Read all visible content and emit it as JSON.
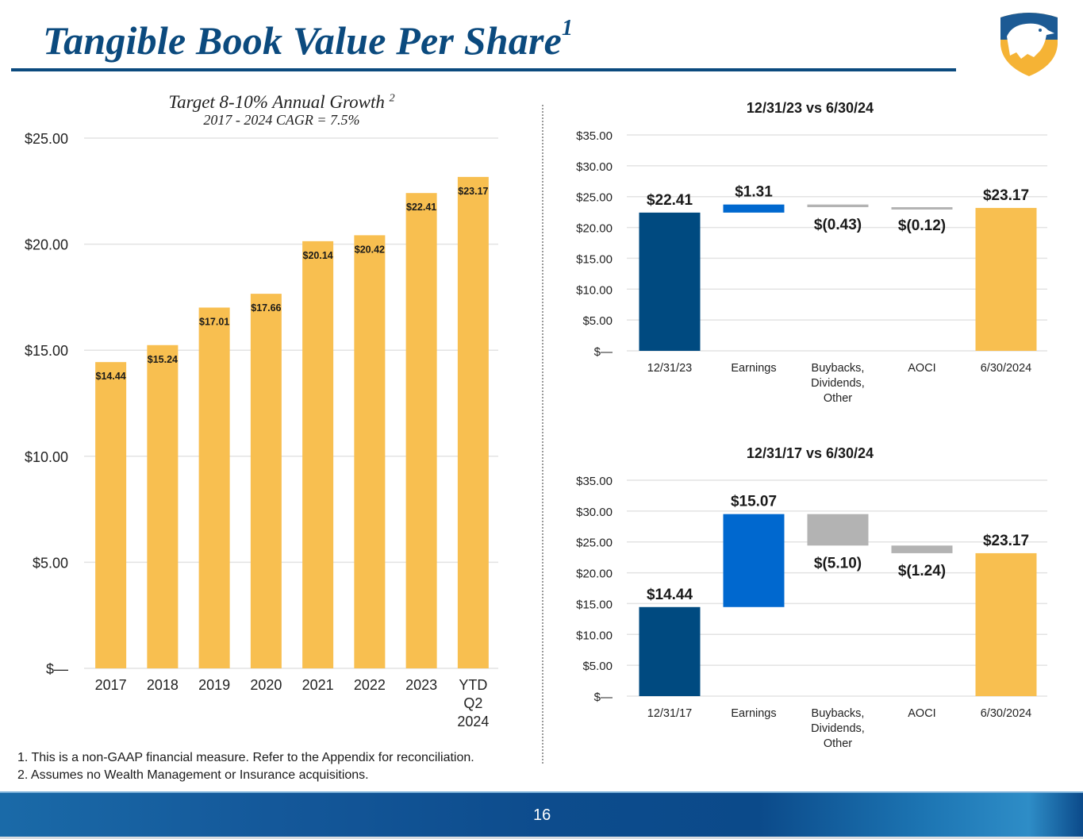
{
  "slide": {
    "title": "Tangible Book Value Per Share",
    "title_footnote_marker": "1",
    "page_number": "16",
    "logo": "eagle-shield-logo",
    "footnotes": [
      "1. This is a non-GAAP financial measure. Refer to the Appendix for reconciliation.",
      "2. Assumes no Wealth Management or Insurance acquisitions."
    ],
    "colors": {
      "title": "#0b4a7e",
      "bar_gold": "#f8bf50",
      "bar_navy": "#004a80",
      "bar_blue": "#0068cf",
      "bar_gray": "#b3b3b3"
    }
  },
  "chart_data": [
    {
      "type": "bar",
      "title": "Target 8-10% Annual Growth",
      "title_footnote_marker": "2",
      "subtitle": "2017 - 2024 CAGR = 7.5%",
      "categories": [
        "2017",
        "2018",
        "2019",
        "2020",
        "2021",
        "2022",
        "2023",
        "YTD Q2 2024"
      ],
      "category_lines": [
        [
          "2017"
        ],
        [
          "2018"
        ],
        [
          "2019"
        ],
        [
          "2020"
        ],
        [
          "2021"
        ],
        [
          "2022"
        ],
        [
          "2023"
        ],
        [
          "YTD",
          "Q2",
          "2024"
        ]
      ],
      "values": [
        14.44,
        15.24,
        17.01,
        17.66,
        20.14,
        20.42,
        22.41,
        23.17
      ],
      "data_labels": [
        "$14.44",
        "$15.24",
        "$17.01",
        "$17.66",
        "$20.14",
        "$20.42",
        "$22.41",
        "$23.17"
      ],
      "ylim": [
        0,
        25
      ],
      "yticks": [
        0,
        5,
        10,
        15,
        20,
        25
      ],
      "ytick_labels": [
        "$—",
        "$5.00",
        "$10.00",
        "$15.00",
        "$20.00",
        "$25.00"
      ],
      "xlabel": "",
      "ylabel": "",
      "grid": true,
      "legend": "none"
    },
    {
      "type": "bar",
      "subtype": "waterfall",
      "title": "12/31/23 vs 6/30/24",
      "categories": [
        "12/31/23",
        "Earnings",
        "Buybacks, Dividends, Other",
        "AOCI",
        "6/30/2024"
      ],
      "category_lines": [
        [
          "12/31/23"
        ],
        [
          "Earnings"
        ],
        [
          "Buybacks,",
          "Dividends,",
          "Other"
        ],
        [
          "AOCI"
        ],
        [
          "6/30/2024"
        ]
      ],
      "values": [
        22.41,
        1.31,
        -0.43,
        -0.12,
        23.17
      ],
      "kinds": [
        "total",
        "delta",
        "delta",
        "delta",
        "total"
      ],
      "data_labels": [
        "$22.41",
        "$1.31",
        "$(0.43)",
        "$(0.12)",
        "$23.17"
      ],
      "ylim": [
        0,
        35
      ],
      "yticks": [
        0,
        5,
        10,
        15,
        20,
        25,
        30,
        35
      ],
      "ytick_labels": [
        "$—",
        "$5.00",
        "$10.00",
        "$15.00",
        "$20.00",
        "$25.00",
        "$30.00",
        "$35.00"
      ],
      "grid": true,
      "legend": "none"
    },
    {
      "type": "bar",
      "subtype": "waterfall",
      "title": "12/31/17 vs 6/30/24",
      "categories": [
        "12/31/17",
        "Earnings",
        "Buybacks, Dividends, Other",
        "AOCI",
        "6/30/2024"
      ],
      "category_lines": [
        [
          "12/31/17"
        ],
        [
          "Earnings"
        ],
        [
          "Buybacks,",
          "Dividends,",
          "Other"
        ],
        [
          "AOCI"
        ],
        [
          "6/30/2024"
        ]
      ],
      "values": [
        14.44,
        15.07,
        -5.1,
        -1.24,
        23.17
      ],
      "kinds": [
        "total",
        "delta",
        "delta",
        "delta",
        "total"
      ],
      "data_labels": [
        "$14.44",
        "$15.07",
        "$(5.10)",
        "$(1.24)",
        "$23.17"
      ],
      "ylim": [
        0,
        35
      ],
      "yticks": [
        0,
        5,
        10,
        15,
        20,
        25,
        30,
        35
      ],
      "ytick_labels": [
        "$—",
        "$5.00",
        "$10.00",
        "$15.00",
        "$20.00",
        "$25.00",
        "$30.00",
        "$35.00"
      ],
      "grid": true,
      "legend": "none"
    }
  ]
}
